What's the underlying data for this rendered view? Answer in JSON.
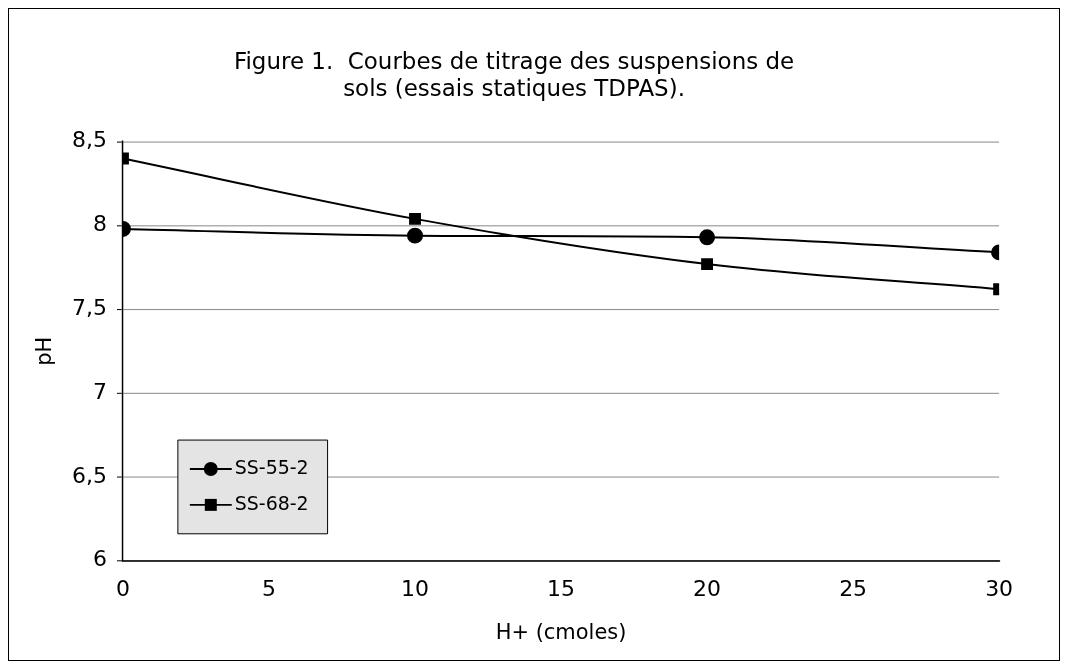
{
  "chart_data": {
    "type": "line",
    "title": [
      "Figure 1.  Courbes de titrage des suspensions de",
      "sols (essais statiques TDPAS)."
    ],
    "xlabel": "H+ (cmoles)",
    "ylabel": "pH",
    "x": [
      0,
      10,
      20,
      30
    ],
    "series": [
      {
        "name": "SS-55-2",
        "color": "#000000",
        "marker": "circle",
        "values": [
          7.98,
          7.94,
          7.93,
          7.84
        ]
      },
      {
        "name": "SS-68-2",
        "color": "#000000",
        "marker": "square",
        "values": [
          8.4,
          8.04,
          7.77,
          7.62
        ]
      }
    ],
    "xlim": [
      0,
      30
    ],
    "xticks": [
      0,
      5,
      10,
      15,
      20,
      25,
      30
    ],
    "ylim": [
      6,
      8.5
    ],
    "yticks": [
      6,
      {
        "value": 6.5,
        "label": "6,5"
      },
      7,
      {
        "value": 7.5,
        "label": "7,5"
      },
      8,
      {
        "value": 8.5,
        "label": "8,5"
      }
    ],
    "grid": "y",
    "legend": "bottom left",
    "line_style": "solid"
  }
}
